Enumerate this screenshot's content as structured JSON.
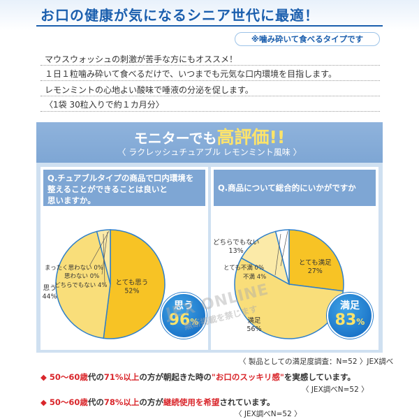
{
  "hero": {
    "title": "お口の健康が気になるシニア世代に最適！",
    "tag": "※噛み砕いて食べるタイプです"
  },
  "description": [
    "マウスウォッシュの刺激が苦手な方にもオススメ！",
    "１日１粒噛み砕いて食べるだけで、いつまでも元気な口内環境を目指します。",
    "レモンミントの心地よい酸味で唾液の分泌を促します。",
    "〈1袋 30粒入りで約１カ月分〉"
  ],
  "banner": {
    "title_part1": "モニターでも",
    "title_part2": "高評価!!",
    "subtitle": "〈 ラクレッシュチュアブル レモンミント風味 〉"
  },
  "colors": {
    "brand_blue": "#1b5fae",
    "panel_blue": "#cfe0f1",
    "question_blue": "#7ea6d4",
    "pie_yellow": "#f7c325",
    "pie_light": "#f9de7a",
    "pie_pale": "#fbeaa8",
    "accent_red": "#d9262b"
  },
  "chart_data": [
    {
      "type": "pie",
      "title": "Q.チュアブルタイプの商品で口内環境を整えることができることは良いと思いますか。",
      "title_lines": [
        "Q.チュアブルタイプの商品で口内環境を",
        "整えることができることは良いと",
        "思いますか。"
      ],
      "slices": [
        {
          "label": "とても思う",
          "value": 52,
          "display": "52%",
          "color": "#f7c325"
        },
        {
          "label": "思う",
          "value": 44,
          "display": "44%",
          "color": "#f9de7a"
        },
        {
          "label": "どちらでもない",
          "value": 4,
          "display": "4%",
          "color": "#fbeaa8"
        },
        {
          "label": "思わない",
          "value": 0,
          "display": "0%",
          "color": "#ffffff"
        },
        {
          "label": "まったく思わない",
          "value": 0,
          "display": "0%",
          "color": "#ffffff"
        }
      ],
      "highlight": {
        "label": "思う",
        "value": 96,
        "unit": "%"
      }
    },
    {
      "type": "pie",
      "title": "Q.商品について総合的にいかがですか",
      "title_lines": [
        "Q.商品について総合的にいかがですか"
      ],
      "slices": [
        {
          "label": "とても満足",
          "value": 27,
          "display": "27%",
          "color": "#f7c325"
        },
        {
          "label": "満足",
          "value": 56,
          "display": "56%",
          "color": "#f9de7a"
        },
        {
          "label": "どちらでもない",
          "value": 13,
          "display": "13%",
          "color": "#fbeaa8"
        },
        {
          "label": "不満",
          "value": 4,
          "display": "4%",
          "color": "#ffffff"
        },
        {
          "label": "とても不満",
          "value": 0,
          "display": "0%",
          "color": "#ffffff"
        }
      ],
      "highlight": {
        "label": "満足",
        "value": 83,
        "unit": "%"
      }
    }
  ],
  "watermark": {
    "line1": "JEX ONLINE",
    "line2": "無断掲載を禁じます"
  },
  "survey_note": "〈 製品としての満足度調査：N=52 〉JEX調べ",
  "facts": [
    {
      "bullet": "◆",
      "parts": [
        {
          "text": "50〜60歳",
          "red": true
        },
        {
          "text": "代の",
          "red": false
        },
        {
          "text": "71%以上",
          "red": true
        },
        {
          "text": "の方が朝起きた時の",
          "red": false
        },
        {
          "text": "\"お口のスッキリ感\"",
          "red": true
        },
        {
          "text": "を実感しています。",
          "red": false
        }
      ],
      "note": "〈 JEX調べN=52 〉"
    },
    {
      "bullet": "◆",
      "parts": [
        {
          "text": "50〜60歳",
          "red": true
        },
        {
          "text": "代の",
          "red": false
        },
        {
          "text": "78%以上",
          "red": true
        },
        {
          "text": "の方が",
          "red": false
        },
        {
          "text": "継続使用を希望",
          "red": true
        },
        {
          "text": "されています。",
          "red": false
        }
      ],
      "note": "〈 JEX調べN=52 〉"
    }
  ]
}
